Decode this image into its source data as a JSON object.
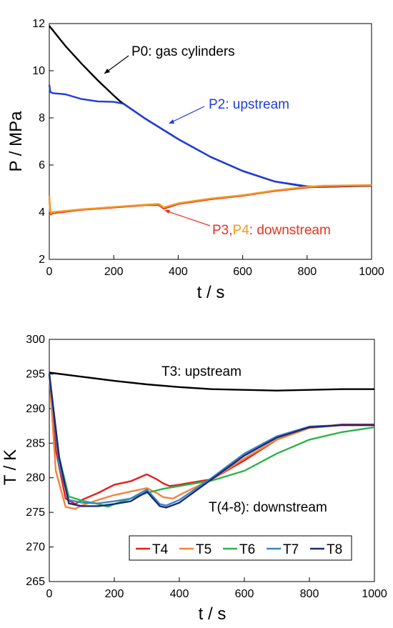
{
  "colors": {
    "P0": "#000000",
    "P2": "#1f3ce0",
    "P3": "#e8321e",
    "P4": "#f39a1f",
    "T3": "#000000",
    "T4": "#e3201c",
    "T5": "#f0853b",
    "T6": "#2fb34a",
    "T7": "#3a86c8",
    "T8": "#1a2a78"
  },
  "chart_data": [
    {
      "type": "line",
      "xlabel": "t / s",
      "ylabel": "P / MPa",
      "xlim": [
        0,
        1000
      ],
      "ylim": [
        2,
        12
      ],
      "xticks": [
        "0",
        "200",
        "400",
        "600",
        "800",
        "1000"
      ],
      "yticks": [
        "2",
        "4",
        "6",
        "8",
        "10",
        "12"
      ],
      "grid": false,
      "annotations": {
        "p0": "P0: gas cylinders",
        "p2": "P2: upstream",
        "p3": "P3,",
        "p4": "P4",
        "down": ": downstream"
      },
      "series": [
        {
          "name": "P0",
          "x": [
            0,
            50,
            100,
            150,
            200,
            220,
            300,
            400,
            500,
            600,
            700,
            800,
            830,
            1000
          ],
          "y": [
            11.9,
            11.05,
            10.3,
            9.6,
            8.95,
            8.7,
            7.95,
            7.1,
            6.35,
            5.75,
            5.3,
            5.08,
            5.07,
            5.12
          ]
        },
        {
          "name": "P2",
          "x": [
            0,
            3,
            10,
            50,
            100,
            150,
            200,
            230,
            300,
            400,
            500,
            600,
            700,
            800,
            830,
            1000
          ],
          "y": [
            9.4,
            9.1,
            9.05,
            9.0,
            8.8,
            8.7,
            8.68,
            8.6,
            7.95,
            7.1,
            6.35,
            5.75,
            5.3,
            5.1,
            5.08,
            5.13
          ]
        },
        {
          "name": "P3",
          "x": [
            0,
            3,
            5,
            10,
            100,
            200,
            300,
            340,
            355,
            400,
            500,
            600,
            700,
            800,
            850,
            1000
          ],
          "y": [
            4.6,
            4.0,
            3.9,
            3.95,
            4.1,
            4.2,
            4.3,
            4.3,
            4.15,
            4.35,
            4.55,
            4.7,
            4.9,
            5.05,
            5.1,
            5.13
          ]
        },
        {
          "name": "P4",
          "x": [
            0,
            2,
            5,
            10,
            100,
            200,
            300,
            340,
            355,
            400,
            500,
            600,
            700,
            800,
            850,
            1000
          ],
          "y": [
            4.7,
            4.05,
            3.95,
            4.0,
            4.12,
            4.22,
            4.32,
            4.35,
            4.2,
            4.38,
            4.58,
            4.72,
            4.92,
            5.08,
            5.12,
            5.15
          ]
        }
      ]
    },
    {
      "type": "line",
      "xlabel": "t / s",
      "ylabel": "T / K",
      "xlim": [
        0,
        1000
      ],
      "ylim": [
        265,
        300
      ],
      "xticks": [
        "0",
        "200",
        "400",
        "600",
        "800",
        "1000"
      ],
      "yticks": [
        "265",
        "270",
        "275",
        "280",
        "285",
        "290",
        "295",
        "300"
      ],
      "grid": false,
      "legend": "bottom-center",
      "annotations": {
        "t3": "T3: upstream",
        "t48": "T(4-8): downstream"
      },
      "series": [
        {
          "name": "T3",
          "x": [
            0,
            100,
            200,
            300,
            400,
            500,
            600,
            700,
            800,
            900,
            1000
          ],
          "y": [
            295.2,
            294.6,
            294.0,
            293.5,
            293.1,
            292.8,
            292.7,
            292.6,
            292.7,
            292.8,
            292.8
          ]
        },
        {
          "name": "T4",
          "x": [
            0,
            20,
            50,
            80,
            100,
            150,
            200,
            250,
            300,
            330,
            350,
            370,
            400,
            500,
            600,
            700,
            800,
            900,
            1000
          ],
          "y": [
            295.0,
            284.0,
            277.0,
            276.2,
            276.8,
            277.8,
            279.0,
            279.5,
            280.5,
            279.8,
            279.2,
            278.8,
            279.0,
            279.8,
            282.5,
            285.5,
            287.2,
            287.7,
            287.7
          ]
        },
        {
          "name": "T5",
          "x": [
            0,
            20,
            50,
            80,
            100,
            150,
            200,
            250,
            300,
            330,
            350,
            380,
            400,
            500,
            600,
            700,
            800,
            900,
            1000
          ],
          "y": [
            295.0,
            281.0,
            275.8,
            275.5,
            276.0,
            276.8,
            277.5,
            278.0,
            278.5,
            277.8,
            277.2,
            277.0,
            277.5,
            279.8,
            282.8,
            285.5,
            287.2,
            287.6,
            287.6
          ]
        },
        {
          "name": "T6",
          "x": [
            0,
            30,
            60,
            100,
            150,
            180,
            200,
            250,
            300,
            350,
            400,
            500,
            600,
            700,
            800,
            900,
            1000
          ],
          "y": [
            295.0,
            283.0,
            277.3,
            276.7,
            276.2,
            275.8,
            276.2,
            277.0,
            277.8,
            278.4,
            278.8,
            279.6,
            281.0,
            283.5,
            285.5,
            286.6,
            287.3
          ]
        },
        {
          "name": "T7",
          "x": [
            0,
            30,
            60,
            100,
            150,
            200,
            250,
            300,
            340,
            360,
            400,
            500,
            600,
            700,
            800,
            900,
            1000
          ],
          "y": [
            295.0,
            282.0,
            276.8,
            276.4,
            276.3,
            276.6,
            277.0,
            278.3,
            276.2,
            276.0,
            276.8,
            280.0,
            283.5,
            286.0,
            287.4,
            287.6,
            287.6
          ]
        },
        {
          "name": "T8",
          "x": [
            0,
            30,
            60,
            100,
            150,
            200,
            250,
            300,
            340,
            360,
            400,
            500,
            600,
            700,
            800,
            900,
            1000
          ],
          "y": [
            295.0,
            283.0,
            276.3,
            275.9,
            275.9,
            276.2,
            276.6,
            278.0,
            275.9,
            275.7,
            276.4,
            279.8,
            283.2,
            285.8,
            287.3,
            287.6,
            287.6
          ]
        }
      ]
    }
  ]
}
